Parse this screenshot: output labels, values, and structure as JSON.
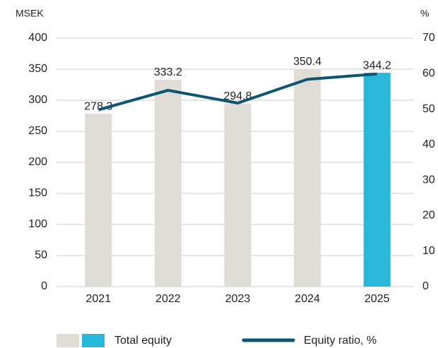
{
  "chart_data": {
    "type": "bar",
    "y_label": "MSEK",
    "y2_label": "%",
    "categories": [
      "2021",
      "2022",
      "2023",
      "2024",
      "2025"
    ],
    "series": [
      {
        "name": "Total equity",
        "type": "bar",
        "colors": [
          "#e0dcd6",
          "#e0dcd6",
          "#e0dcd6",
          "#e0dcd6",
          "#29b8da"
        ],
        "values": [
          278.3,
          333.2,
          294.8,
          350.4,
          344.2
        ]
      },
      {
        "name": "Equity ratio, %",
        "type": "line",
        "axis": "y2",
        "color": "#0d5570",
        "values": [
          49.8,
          55.3,
          51.7,
          58.4,
          59.9
        ]
      }
    ],
    "ylim": [
      0,
      400
    ],
    "yticks": [
      0,
      50,
      100,
      150,
      200,
      250,
      300,
      350,
      400
    ],
    "y2lim": [
      0,
      70
    ],
    "y2ticks": [
      0,
      10,
      20,
      30,
      40,
      50,
      60,
      70
    ],
    "grid": true
  }
}
